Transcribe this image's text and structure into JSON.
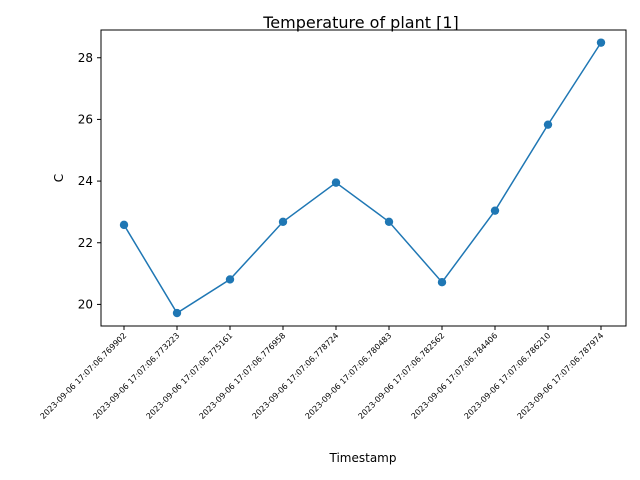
{
  "chart_data": {
    "type": "line",
    "title": "Temperature of plant [1]",
    "xlabel": "Timestamp",
    "ylabel": "C",
    "categories": [
      "2023-09-06 17:07:06.769902",
      "2023-09-06 17:07:06.773223",
      "2023-09-06 17:07:06.775161",
      "2023-09-06 17:07:06.776958",
      "2023-09-06 17:07:06.778724",
      "2023-09-06 17:07:06.780483",
      "2023-09-06 17:07:06.782562",
      "2023-09-06 17:07:06.784406",
      "2023-09-06 17:07:06.786210",
      "2023-09-06 17:07:06.787974"
    ],
    "series": [
      {
        "values": [
          22.58,
          19.72,
          20.81,
          22.68,
          23.95,
          22.68,
          20.72,
          23.04,
          25.83,
          28.49
        ]
      }
    ],
    "ylim": [
      19.3,
      28.9
    ],
    "yticks": [
      20,
      22,
      24,
      26,
      28
    ],
    "grid": false,
    "line_color": "#1f77b4"
  }
}
